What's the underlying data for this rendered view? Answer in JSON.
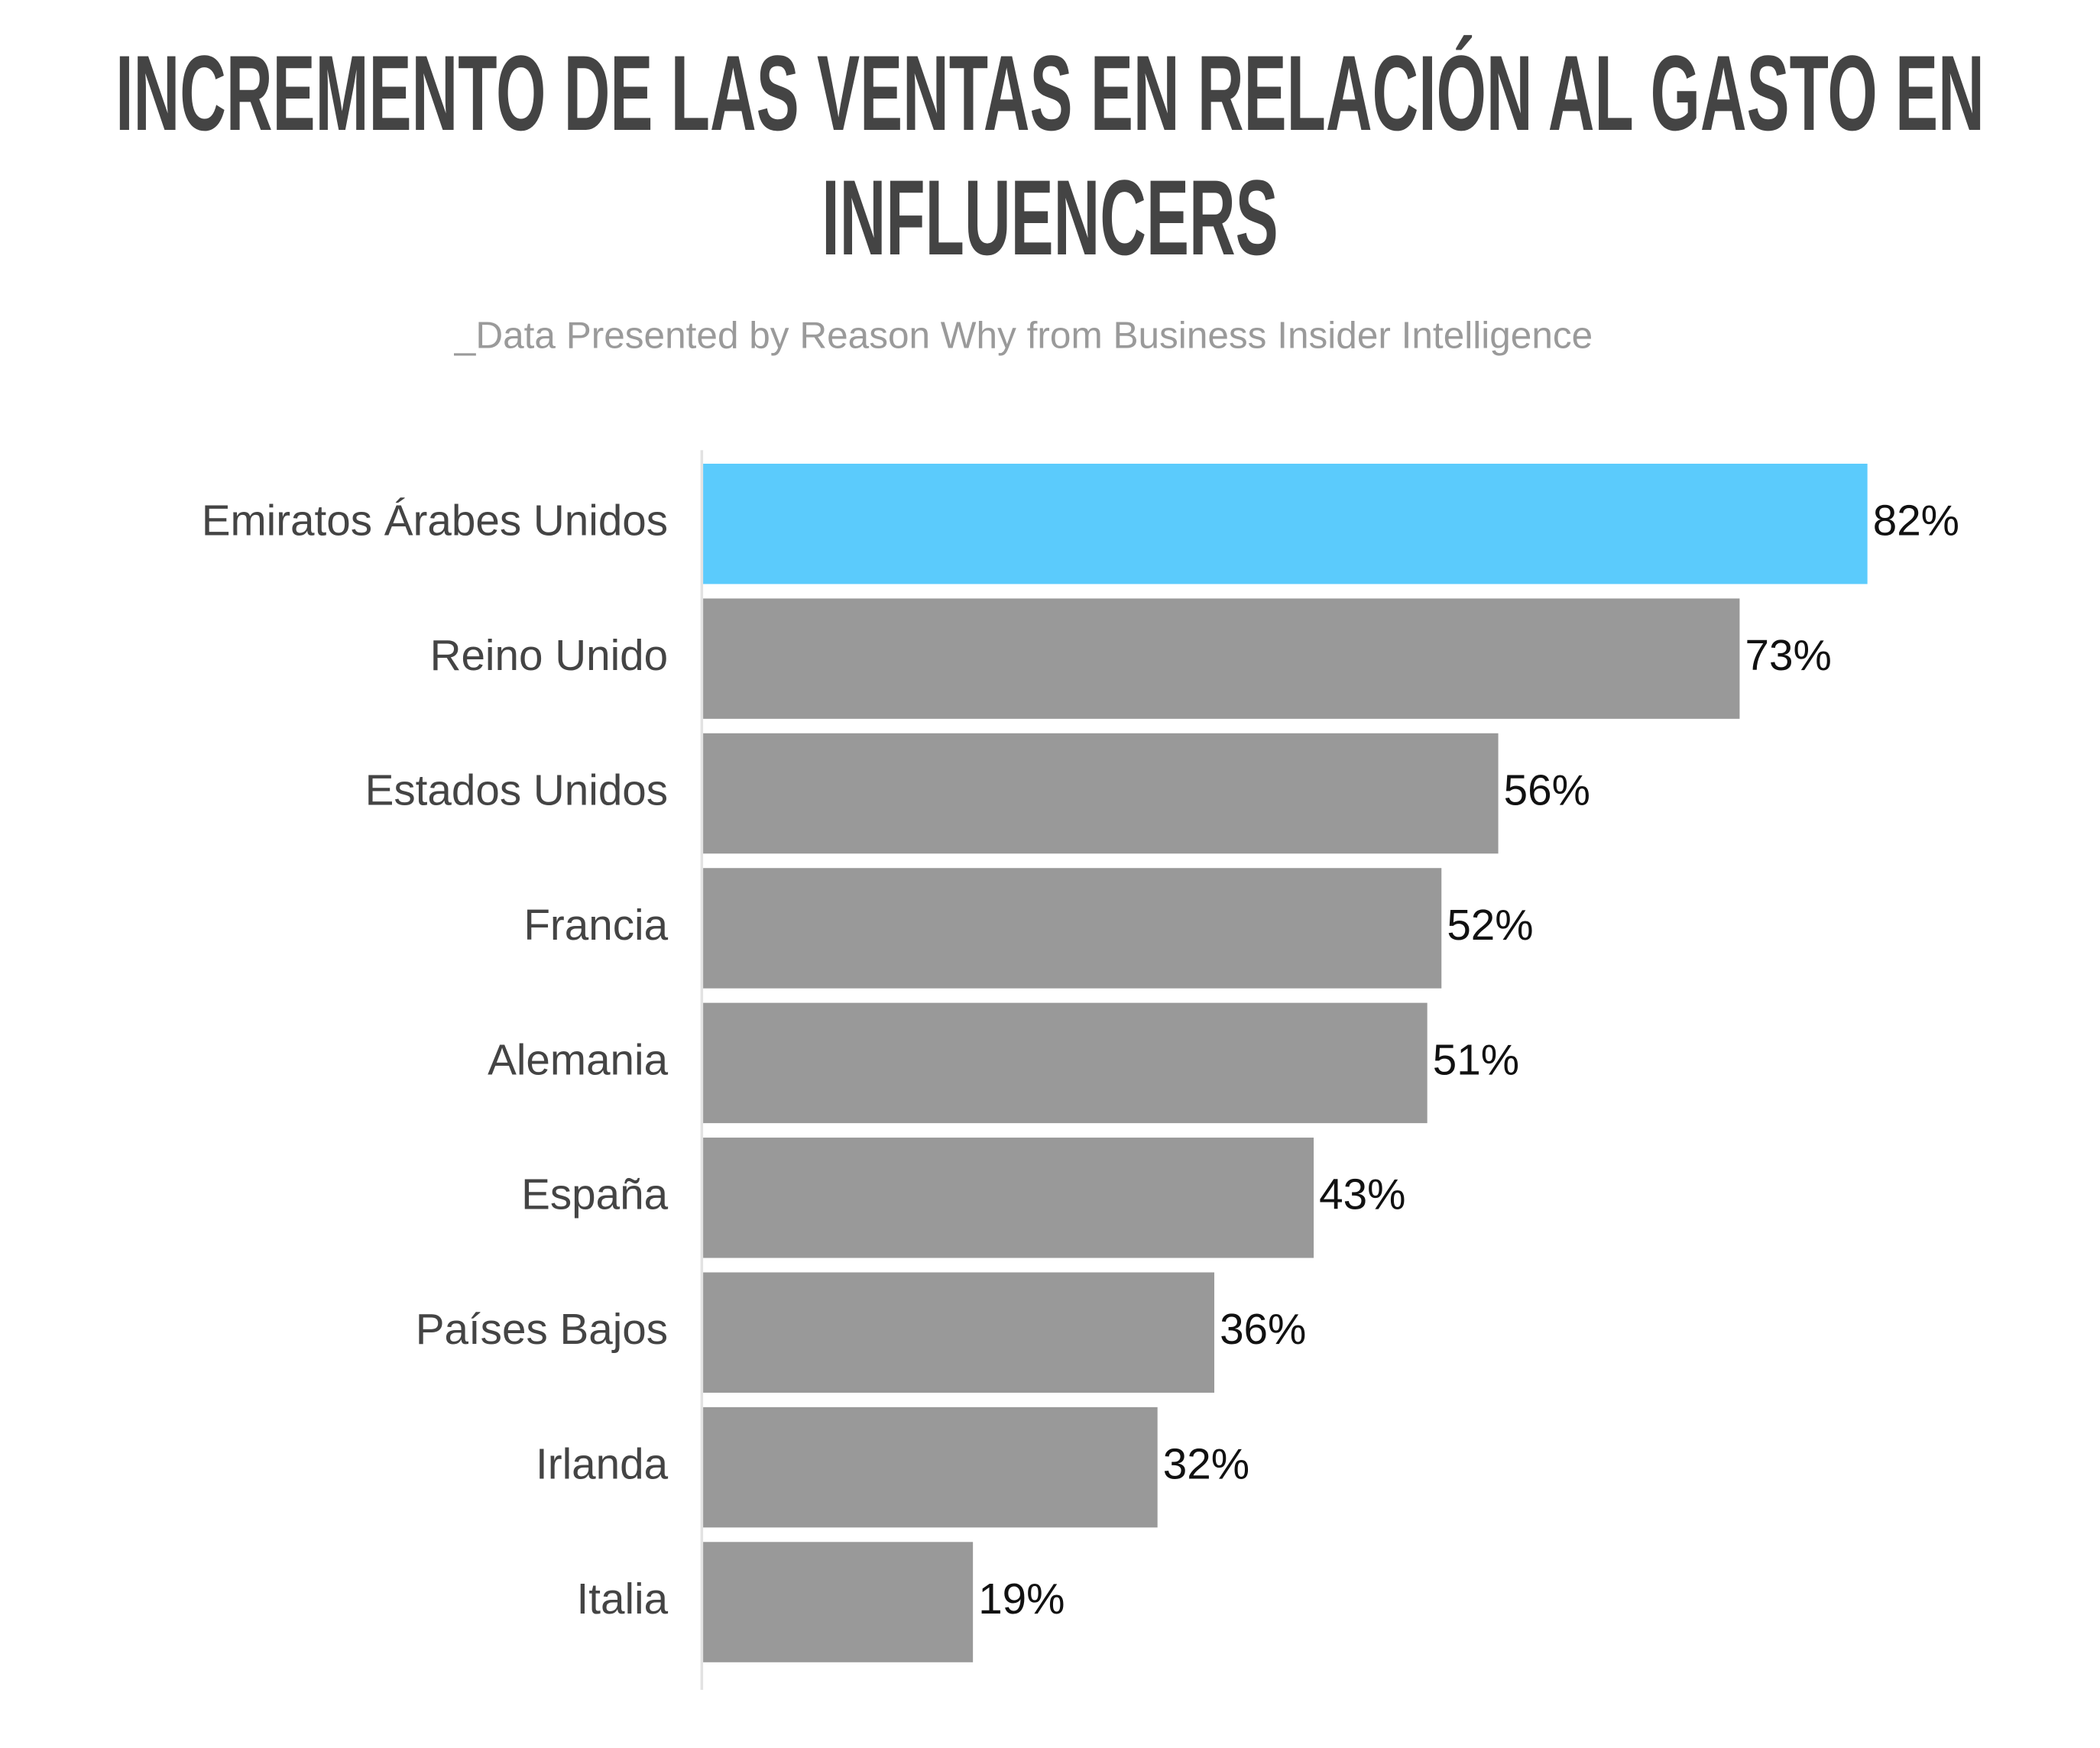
{
  "chart_data": {
    "type": "hbar",
    "title": "INCREMENTO DE LAS VENTAS EN RELACIÓN AL GASTO EN INFLUENCERS",
    "subtitle": "_Data Presented by Reason Why from Business Insider Intelligence",
    "categories": [
      "Emiratos Árabes Unidos",
      "Reino Unido",
      "Estados Unidos",
      "Francia",
      "Alemania",
      "España",
      "Países Bajos",
      "Irlanda",
      "Italia"
    ],
    "values": [
      82,
      73,
      56,
      52,
      51,
      43,
      36,
      32,
      19
    ],
    "value_labels": [
      "82%",
      "73%",
      "56%",
      "52%",
      "51%",
      "43%",
      "36%",
      "32%",
      "19%"
    ],
    "colors": [
      "#5bcbfc",
      "#999999",
      "#999999",
      "#999999",
      "#999999",
      "#999999",
      "#999999",
      "#999999",
      "#999999"
    ]
  }
}
